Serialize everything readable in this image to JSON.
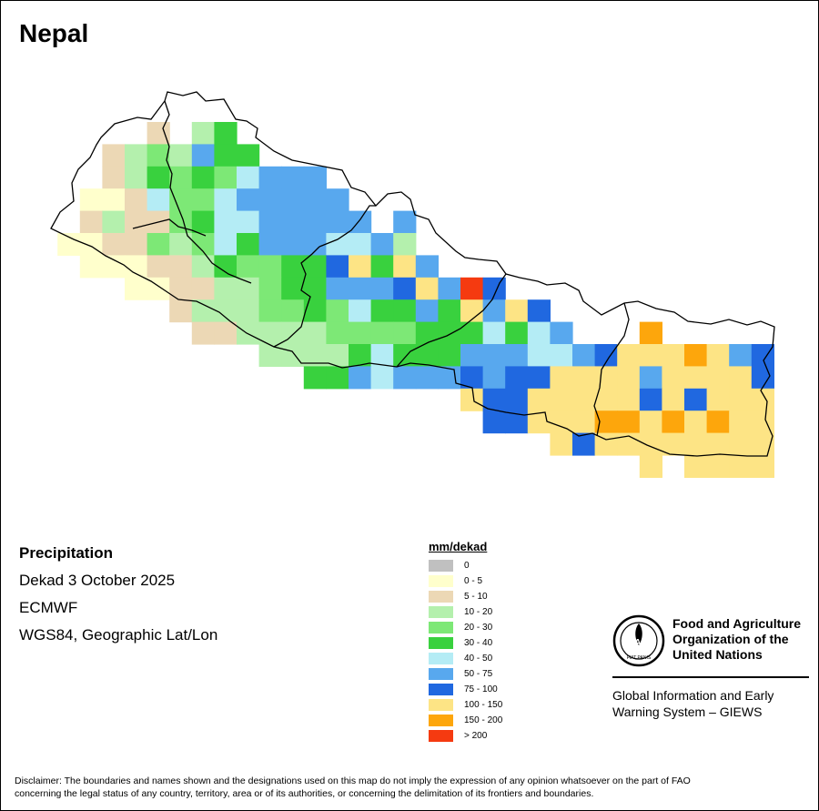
{
  "map": {
    "title": "Nepal",
    "variable": "Precipitation",
    "period": "Dekad 3 October 2025",
    "source": "ECMWF",
    "projection": "WGS84, Geographic Lat/Lon",
    "cell_values_mm_per_dekad": [
      {
        "row": 0,
        "cells": [
          {
            "col": 6,
            "class": "5 - 10"
          },
          {
            "col": 8,
            "class": "10 - 20"
          },
          {
            "col": 9,
            "class": "30 - 40"
          }
        ]
      },
      {
        "row": 1,
        "cells": [
          {
            "col": 4,
            "class": "5 - 10"
          },
          {
            "col": 5,
            "class": "10 - 20"
          },
          {
            "col": 6,
            "class": "20 - 30"
          },
          {
            "col": 7,
            "class": "10 - 20"
          },
          {
            "col": 8,
            "class": "50 - 75"
          },
          {
            "col": 9,
            "class": "30 - 40"
          },
          {
            "col": 10,
            "class": "30 - 40"
          }
        ]
      },
      {
        "row": 2,
        "cells": [
          {
            "col": 4,
            "class": "5 - 10"
          },
          {
            "col": 5,
            "class": "10 - 20"
          },
          {
            "col": 6,
            "class": "30 - 40"
          },
          {
            "col": 7,
            "class": "20 - 30"
          },
          {
            "col": 8,
            "class": "30 - 40"
          },
          {
            "col": 9,
            "class": "20 - 30"
          },
          {
            "col": 10,
            "class": "40 - 50"
          },
          {
            "col": 11,
            "class": "50 - 75"
          },
          {
            "col": 12,
            "class": "50 - 75"
          },
          {
            "col": 13,
            "class": "50 - 75"
          }
        ]
      },
      {
        "row": 3,
        "cells": [
          {
            "col": 3,
            "class": "0 - 5"
          },
          {
            "col": 4,
            "class": "0 - 5"
          },
          {
            "col": 5,
            "class": "5 - 10"
          },
          {
            "col": 6,
            "class": "40 - 50"
          },
          {
            "col": 7,
            "class": "20 - 30"
          },
          {
            "col": 8,
            "class": "20 - 30"
          },
          {
            "col": 9,
            "class": "40 - 50"
          },
          {
            "col": 10,
            "class": "50 - 75"
          },
          {
            "col": 11,
            "class": "50 - 75"
          },
          {
            "col": 12,
            "class": "50 - 75"
          },
          {
            "col": 13,
            "class": "50 - 75"
          },
          {
            "col": 14,
            "class": "50 - 75"
          }
        ]
      },
      {
        "row": 4,
        "cells": [
          {
            "col": 3,
            "class": "5 - 10"
          },
          {
            "col": 4,
            "class": "10 - 20"
          },
          {
            "col": 5,
            "class": "5 - 10"
          },
          {
            "col": 6,
            "class": "5 - 10"
          },
          {
            "col": 7,
            "class": "20 - 30"
          },
          {
            "col": 8,
            "class": "30 - 40"
          },
          {
            "col": 9,
            "class": "40 - 50"
          },
          {
            "col": 10,
            "class": "40 - 50"
          },
          {
            "col": 11,
            "class": "50 - 75"
          },
          {
            "col": 12,
            "class": "50 - 75"
          },
          {
            "col": 13,
            "class": "50 - 75"
          },
          {
            "col": 14,
            "class": "50 - 75"
          },
          {
            "col": 15,
            "class": "50 - 75"
          },
          {
            "col": 17,
            "class": "50 - 75"
          }
        ]
      },
      {
        "row": 5,
        "cells": [
          {
            "col": 2,
            "class": "0 - 5"
          },
          {
            "col": 3,
            "class": "0 - 5"
          },
          {
            "col": 4,
            "class": "5 - 10"
          },
          {
            "col": 5,
            "class": "5 - 10"
          },
          {
            "col": 6,
            "class": "20 - 30"
          },
          {
            "col": 7,
            "class": "10 - 20"
          },
          {
            "col": 8,
            "class": "20 - 30"
          },
          {
            "col": 9,
            "class": "40 - 50"
          },
          {
            "col": 10,
            "class": "30 - 40"
          },
          {
            "col": 11,
            "class": "50 - 75"
          },
          {
            "col": 12,
            "class": "50 - 75"
          },
          {
            "col": 13,
            "class": "50 - 75"
          },
          {
            "col": 14,
            "class": "40 - 50"
          },
          {
            "col": 15,
            "class": "40 - 50"
          },
          {
            "col": 16,
            "class": "50 - 75"
          },
          {
            "col": 17,
            "class": "10 - 20"
          }
        ]
      },
      {
        "row": 6,
        "cells": [
          {
            "col": 3,
            "class": "0 - 5"
          },
          {
            "col": 4,
            "class": "0 - 5"
          },
          {
            "col": 5,
            "class": "0 - 5"
          },
          {
            "col": 6,
            "class": "5 - 10"
          },
          {
            "col": 7,
            "class": "5 - 10"
          },
          {
            "col": 8,
            "class": "10 - 20"
          },
          {
            "col": 9,
            "class": "30 - 40"
          },
          {
            "col": 10,
            "class": "20 - 30"
          },
          {
            "col": 11,
            "class": "20 - 30"
          },
          {
            "col": 12,
            "class": "30 - 40"
          },
          {
            "col": 13,
            "class": "30 - 40"
          },
          {
            "col": 14,
            "class": "75 - 100"
          },
          {
            "col": 15,
            "class": "100 - 150"
          },
          {
            "col": 16,
            "class": "30 - 40"
          },
          {
            "col": 17,
            "class": "100 - 150"
          },
          {
            "col": 18,
            "class": "50 - 75"
          }
        ]
      },
      {
        "row": 7,
        "cells": [
          {
            "col": 5,
            "class": "0 - 5"
          },
          {
            "col": 6,
            "class": "0 - 5"
          },
          {
            "col": 7,
            "class": "5 - 10"
          },
          {
            "col": 8,
            "class": "5 - 10"
          },
          {
            "col": 9,
            "class": "10 - 20"
          },
          {
            "col": 10,
            "class": "10 - 20"
          },
          {
            "col": 11,
            "class": "20 - 30"
          },
          {
            "col": 12,
            "class": "30 - 40"
          },
          {
            "col": 13,
            "class": "30 - 40"
          },
          {
            "col": 14,
            "class": "50 - 75"
          },
          {
            "col": 15,
            "class": "50 - 75"
          },
          {
            "col": 16,
            "class": "50 - 75"
          },
          {
            "col": 17,
            "class": "75 - 100"
          },
          {
            "col": 18,
            "class": "100 - 150"
          },
          {
            "col": 19,
            "class": "50 - 75"
          },
          {
            "col": 20,
            "class": "> 200"
          },
          {
            "col": 21,
            "class": "75 - 100"
          }
        ]
      },
      {
        "row": 8,
        "cells": [
          {
            "col": 7,
            "class": "5 - 10"
          },
          {
            "col": 8,
            "class": "10 - 20"
          },
          {
            "col": 9,
            "class": "10 - 20"
          },
          {
            "col": 10,
            "class": "10 - 20"
          },
          {
            "col": 11,
            "class": "20 - 30"
          },
          {
            "col": 12,
            "class": "20 - 30"
          },
          {
            "col": 13,
            "class": "30 - 40"
          },
          {
            "col": 14,
            "class": "20 - 30"
          },
          {
            "col": 15,
            "class": "40 - 50"
          },
          {
            "col": 16,
            "class": "30 - 40"
          },
          {
            "col": 17,
            "class": "30 - 40"
          },
          {
            "col": 18,
            "class": "50 - 75"
          },
          {
            "col": 19,
            "class": "30 - 40"
          },
          {
            "col": 20,
            "class": "100 - 150"
          },
          {
            "col": 21,
            "class": "50 - 75"
          },
          {
            "col": 22,
            "class": "100 - 150"
          },
          {
            "col": 23,
            "class": "75 - 100"
          }
        ]
      },
      {
        "row": 9,
        "cells": [
          {
            "col": 8,
            "class": "5 - 10"
          },
          {
            "col": 9,
            "class": "5 - 10"
          },
          {
            "col": 10,
            "class": "10 - 20"
          },
          {
            "col": 11,
            "class": "10 - 20"
          },
          {
            "col": 12,
            "class": "10 - 20"
          },
          {
            "col": 13,
            "class": "10 - 20"
          },
          {
            "col": 14,
            "class": "20 - 30"
          },
          {
            "col": 15,
            "class": "20 - 30"
          },
          {
            "col": 16,
            "class": "20 - 30"
          },
          {
            "col": 17,
            "class": "20 - 30"
          },
          {
            "col": 18,
            "class": "30 - 40"
          },
          {
            "col": 19,
            "class": "30 - 40"
          },
          {
            "col": 20,
            "class": "30 - 40"
          },
          {
            "col": 21,
            "class": "40 - 50"
          },
          {
            "col": 22,
            "class": "30 - 40"
          },
          {
            "col": 23,
            "class": "40 - 50"
          },
          {
            "col": 24,
            "class": "50 - 75"
          },
          {
            "col": 28,
            "class": "150 - 200"
          }
        ]
      },
      {
        "row": 10,
        "cells": [
          {
            "col": 11,
            "class": "10 - 20"
          },
          {
            "col": 12,
            "class": "10 - 20"
          },
          {
            "col": 13,
            "class": "10 - 20"
          },
          {
            "col": 14,
            "class": "10 - 20"
          },
          {
            "col": 15,
            "class": "30 - 40"
          },
          {
            "col": 16,
            "class": "40 - 50"
          },
          {
            "col": 17,
            "class": "30 - 40"
          },
          {
            "col": 18,
            "class": "30 - 40"
          },
          {
            "col": 19,
            "class": "30 - 40"
          },
          {
            "col": 20,
            "class": "50 - 75"
          },
          {
            "col": 21,
            "class": "50 - 75"
          },
          {
            "col": 22,
            "class": "50 - 75"
          },
          {
            "col": 23,
            "class": "40 - 50"
          },
          {
            "col": 24,
            "class": "40 - 50"
          },
          {
            "col": 25,
            "class": "50 - 75"
          },
          {
            "col": 26,
            "class": "75 - 100"
          },
          {
            "col": 27,
            "class": "100 - 150"
          },
          {
            "col": 28,
            "class": "100 - 150"
          },
          {
            "col": 29,
            "class": "100 - 150"
          },
          {
            "col": 30,
            "class": "150 - 200"
          },
          {
            "col": 31,
            "class": "100 - 150"
          },
          {
            "col": 32,
            "class": "50 - 75"
          },
          {
            "col": 33,
            "class": "75 - 100"
          }
        ]
      },
      {
        "row": 11,
        "cells": [
          {
            "col": 13,
            "class": "30 - 40"
          },
          {
            "col": 14,
            "class": "30 - 40"
          },
          {
            "col": 15,
            "class": "50 - 75"
          },
          {
            "col": 16,
            "class": "40 - 50"
          },
          {
            "col": 17,
            "class": "50 - 75"
          },
          {
            "col": 18,
            "class": "50 - 75"
          },
          {
            "col": 19,
            "class": "50 - 75"
          },
          {
            "col": 20,
            "class": "75 - 100"
          },
          {
            "col": 21,
            "class": "50 - 75"
          },
          {
            "col": 22,
            "class": "75 - 100"
          },
          {
            "col": 23,
            "class": "75 - 100"
          },
          {
            "col": 24,
            "class": "100 - 150"
          },
          {
            "col": 25,
            "class": "100 - 150"
          },
          {
            "col": 26,
            "class": "100 - 150"
          },
          {
            "col": 27,
            "class": "100 - 150"
          },
          {
            "col": 28,
            "class": "50 - 75"
          },
          {
            "col": 29,
            "class": "100 - 150"
          },
          {
            "col": 30,
            "class": "100 - 150"
          },
          {
            "col": 31,
            "class": "100 - 150"
          },
          {
            "col": 32,
            "class": "100 - 150"
          },
          {
            "col": 33,
            "class": "75 - 100"
          }
        ]
      },
      {
        "row": 12,
        "cells": [
          {
            "col": 20,
            "class": "100 - 150"
          },
          {
            "col": 21,
            "class": "75 - 100"
          },
          {
            "col": 22,
            "class": "75 - 100"
          },
          {
            "col": 23,
            "class": "100 - 150"
          },
          {
            "col": 24,
            "class": "100 - 150"
          },
          {
            "col": 25,
            "class": "100 - 150"
          },
          {
            "col": 26,
            "class": "100 - 150"
          },
          {
            "col": 27,
            "class": "100 - 150"
          },
          {
            "col": 28,
            "class": "75 - 100"
          },
          {
            "col": 29,
            "class": "100 - 150"
          },
          {
            "col": 30,
            "class": "75 - 100"
          },
          {
            "col": 31,
            "class": "100 - 150"
          },
          {
            "col": 32,
            "class": "100 - 150"
          },
          {
            "col": 33,
            "class": "100 - 150"
          }
        ]
      },
      {
        "row": 13,
        "cells": [
          {
            "col": 21,
            "class": "75 - 100"
          },
          {
            "col": 22,
            "class": "75 - 100"
          },
          {
            "col": 23,
            "class": "100 - 150"
          },
          {
            "col": 24,
            "class": "100 - 150"
          },
          {
            "col": 25,
            "class": "100 - 150"
          },
          {
            "col": 26,
            "class": "150 - 200"
          },
          {
            "col": 27,
            "class": "150 - 200"
          },
          {
            "col": 28,
            "class": "100 - 150"
          },
          {
            "col": 29,
            "class": "150 - 200"
          },
          {
            "col": 30,
            "class": "100 - 150"
          },
          {
            "col": 31,
            "class": "150 - 200"
          },
          {
            "col": 32,
            "class": "100 - 150"
          },
          {
            "col": 33,
            "class": "100 - 150"
          }
        ]
      },
      {
        "row": 14,
        "cells": [
          {
            "col": 24,
            "class": "100 - 150"
          },
          {
            "col": 25,
            "class": "75 - 100"
          },
          {
            "col": 26,
            "class": "100 - 150"
          },
          {
            "col": 27,
            "class": "100 - 150"
          },
          {
            "col": 28,
            "class": "100 - 150"
          },
          {
            "col": 29,
            "class": "100 - 150"
          },
          {
            "col": 30,
            "class": "100 - 150"
          },
          {
            "col": 31,
            "class": "100 - 150"
          },
          {
            "col": 32,
            "class": "100 - 150"
          },
          {
            "col": 33,
            "class": "100 - 150"
          }
        ]
      },
      {
        "row": 15,
        "cells": [
          {
            "col": 28,
            "class": "100 - 150"
          },
          {
            "col": 30,
            "class": "100 - 150"
          },
          {
            "col": 31,
            "class": "100 - 150"
          },
          {
            "col": 32,
            "class": "100 - 150"
          },
          {
            "col": 33,
            "class": "100 - 150"
          }
        ]
      }
    ]
  },
  "legend": {
    "title": "mm/dekad",
    "items": [
      {
        "label": "0",
        "color": "#c0c0c0"
      },
      {
        "label": "0 - 5",
        "color": "#ffffcc"
      },
      {
        "label": "5 - 10",
        "color": "#ecd8b5"
      },
      {
        "label": "10 - 20",
        "color": "#b4f0ad"
      },
      {
        "label": "20 - 30",
        "color": "#7de876"
      },
      {
        "label": "30 - 40",
        "color": "#39d13e"
      },
      {
        "label": "40 - 50",
        "color": "#b4ecf5"
      },
      {
        "label": "50 - 75",
        "color": "#58a8ee"
      },
      {
        "label": "75 - 100",
        "color": "#2068e0"
      },
      {
        "label": "100 - 150",
        "color": "#fde485"
      },
      {
        "label": "150 - 200",
        "color": "#fda60c"
      },
      {
        "label": "> 200",
        "color": "#f53a10"
      }
    ]
  },
  "branding": {
    "org_name_line1": "Food and Agriculture",
    "org_name_line2": "Organization of the",
    "org_name_line3": "United Nations",
    "logo_text": "FAO",
    "logo_motto": "FIAT PANIS",
    "system_line1": "Global Information and Early",
    "system_line2": "Warning System – GIEWS"
  },
  "disclaimer_line1": "Disclaimer: The boundaries and names shown and the designations used on this map do not imply the expression of any opinion whatsoever on the part of FAO",
  "disclaimer_line2": "concerning the legal status of any country, territory, area or of its authorities, or concerning the delimitation of its frontiers and boundaries."
}
